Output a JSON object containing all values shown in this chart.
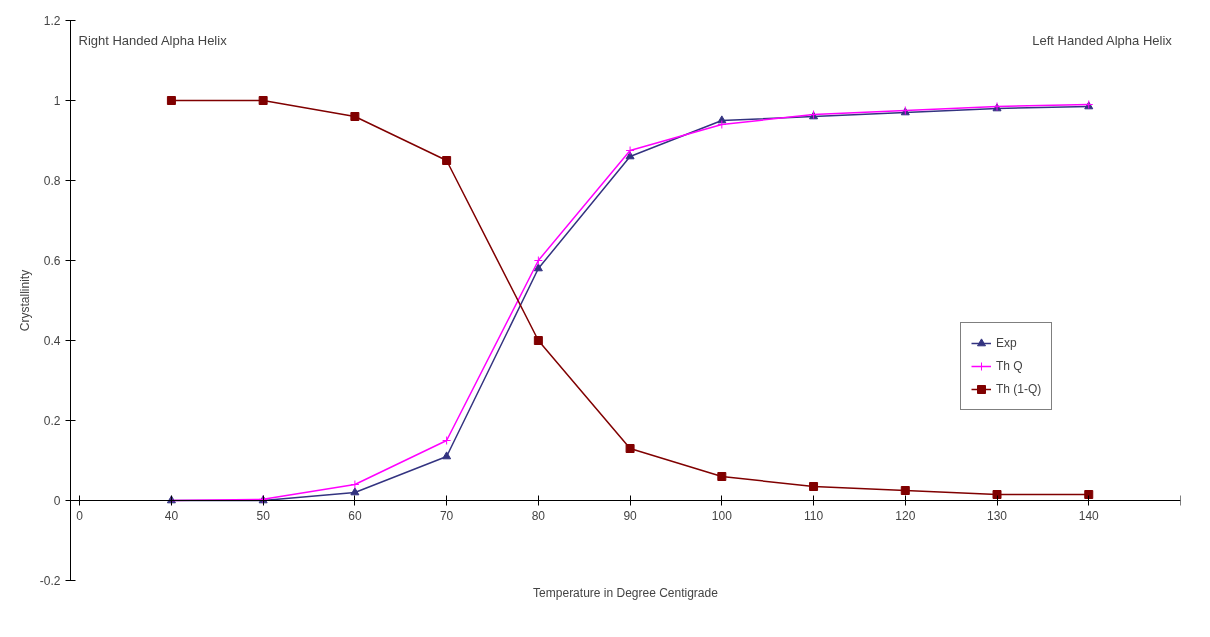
{
  "chart_data": {
    "type": "line",
    "xlabel": "Temperature in Degree Centigrade",
    "ylabel": "Crystallinity",
    "categories": [
      "0",
      "40",
      "50",
      "60",
      "70",
      "80",
      "90",
      "100",
      "110",
      "120",
      "130",
      "140",
      null
    ],
    "ylim": [
      -0.2,
      1.2
    ],
    "yticks": [
      -0.2,
      0,
      0.2,
      0.4,
      0.6,
      0.8,
      1,
      1.2
    ],
    "grid": false,
    "legend": "right",
    "annotations": [
      "Right Handed Alpha Helix",
      "Left Handed Alpha Helix"
    ],
    "series": [
      {
        "name": "Exp",
        "color": "#333380",
        "marker": "triangle",
        "values": [
          null,
          0,
          0,
          0.02,
          0.11,
          0.58,
          0.86,
          0.95,
          0.96,
          0.97,
          0.98,
          0.985,
          null
        ]
      },
      {
        "name": "Th Q",
        "color": "#ff00ff",
        "marker": "cross",
        "values": [
          null,
          0,
          0.003,
          0.04,
          0.15,
          0.6,
          0.875,
          0.94,
          0.965,
          0.975,
          0.985,
          0.99,
          null
        ]
      },
      {
        "name": "Th (1-Q)",
        "color": "#800000",
        "marker": "square",
        "values": [
          null,
          1,
          1,
          0.96,
          0.85,
          0.4,
          0.13,
          0.06,
          0.035,
          0.025,
          0.015,
          0.015,
          null
        ]
      }
    ]
  }
}
